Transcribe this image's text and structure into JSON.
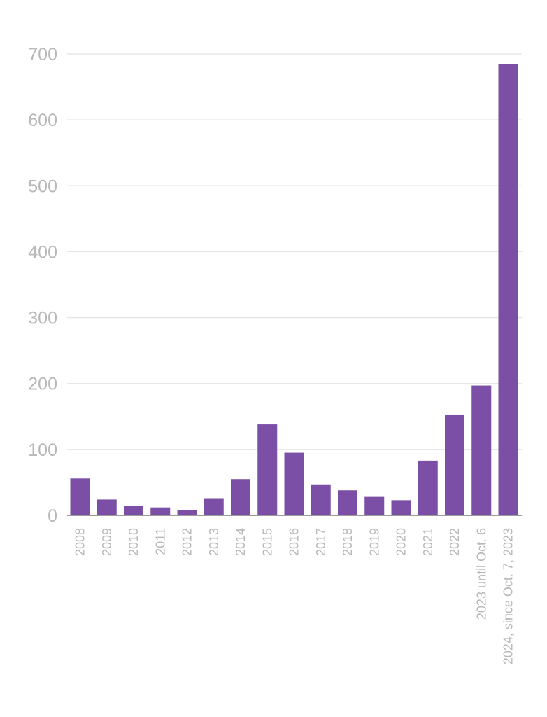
{
  "chart_data": {
    "type": "bar",
    "categories": [
      "2008",
      "2009",
      "2010",
      "2011",
      "2012",
      "2013",
      "2014",
      "2015",
      "2016",
      "2017",
      "2018",
      "2019",
      "2020",
      "2021",
      "2022",
      "2023 until Oct. 6",
      "2024, since Oct. 7, 2023"
    ],
    "values": [
      56,
      24,
      14,
      12,
      8,
      26,
      55,
      138,
      95,
      47,
      38,
      28,
      23,
      83,
      153,
      197,
      685
    ],
    "ylim": [
      0,
      700
    ],
    "yticks": [
      0,
      100,
      200,
      300,
      400,
      500,
      600,
      700
    ],
    "grid": true,
    "colors": {
      "bar": "#7b4fa6"
    }
  }
}
